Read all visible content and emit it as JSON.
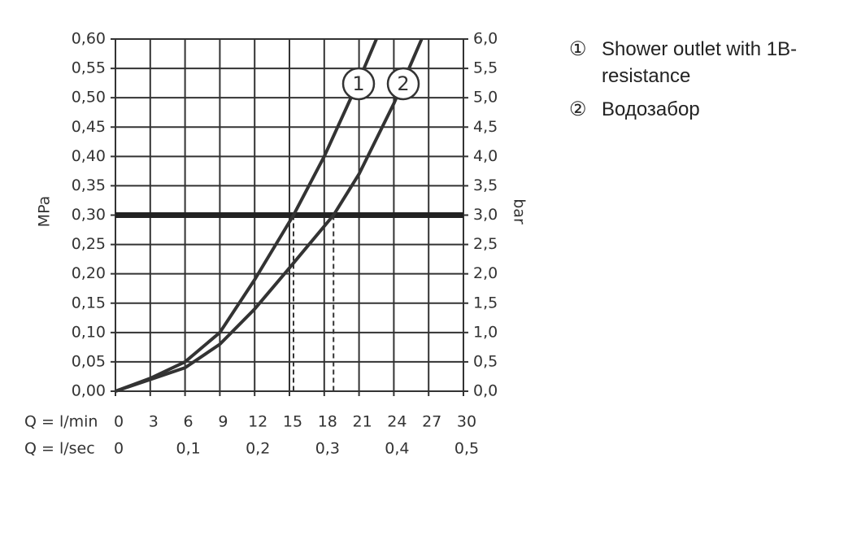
{
  "chart_data": {
    "type": "line",
    "xlabel": "Q = l/min",
    "x2label": "Q = l/sec",
    "ylabel": "MPa",
    "y2label": "bar",
    "xlim": [
      0,
      30
    ],
    "xticks": [
      0,
      3,
      6,
      9,
      12,
      15,
      18,
      21,
      24,
      27,
      30
    ],
    "x2lim": [
      0,
      0.5
    ],
    "x2ticks": [
      0,
      {
        "value": 0.1,
        "label": "0,1"
      },
      {
        "value": 0.2,
        "label": "0,2"
      },
      {
        "value": 0.3,
        "label": "0,3"
      },
      {
        "value": 0.4,
        "label": "0,4"
      },
      {
        "value": 0.5,
        "label": "0,5"
      }
    ],
    "ylim": [
      0,
      0.6
    ],
    "yticks": [
      {
        "value": 0,
        "label": "0,00"
      },
      {
        "value": 0.05,
        "label": "0,05"
      },
      {
        "value": 0.1,
        "label": "0,10"
      },
      {
        "value": 0.15,
        "label": "0,15"
      },
      {
        "value": 0.2,
        "label": "0,20"
      },
      {
        "value": 0.25,
        "label": "0,25"
      },
      {
        "value": 0.3,
        "label": "0,30"
      },
      {
        "value": 0.35,
        "label": "0,35"
      },
      {
        "value": 0.4,
        "label": "0,40"
      },
      {
        "value": 0.45,
        "label": "0,45"
      },
      {
        "value": 0.5,
        "label": "0,50"
      },
      {
        "value": 0.55,
        "label": "0,55"
      },
      {
        "value": 0.6,
        "label": "0,60"
      }
    ],
    "y2lim": [
      0,
      6
    ],
    "y2ticks": [
      {
        "value": 0,
        "label": "0,0"
      },
      {
        "value": 0.5,
        "label": "0,5"
      },
      {
        "value": 1,
        "label": "1,0"
      },
      {
        "value": 1.5,
        "label": "1,5"
      },
      {
        "value": 2,
        "label": "2,0"
      },
      {
        "value": 2.5,
        "label": "2,5"
      },
      {
        "value": 3,
        "label": "3,0"
      },
      {
        "value": 3.5,
        "label": "3,5"
      },
      {
        "value": 4,
        "label": "4,0"
      },
      {
        "value": 4.5,
        "label": "4,5"
      },
      {
        "value": 5,
        "label": "5,0"
      },
      {
        "value": 5.5,
        "label": "5,5"
      },
      {
        "value": 6,
        "label": "6,0"
      }
    ],
    "grid": true,
    "hline": 0.3,
    "vlines": [
      15.35,
      18.8
    ],
    "series": [
      {
        "name": "Shower outlet with 1B-resistance",
        "curve_label": "1",
        "legend_symbol": "①",
        "color": "#333333",
        "x": [
          0,
          3,
          6,
          9,
          12,
          15.35,
          18,
          21,
          22.5
        ],
        "values": [
          0,
          0.022,
          0.05,
          0.1,
          0.19,
          0.3,
          0.4,
          0.53,
          0.6
        ]
      },
      {
        "name": "Водозабор",
        "curve_label": "2",
        "legend_symbol": "②",
        "color": "#333333",
        "x": [
          0,
          3,
          6,
          9,
          12,
          15,
          18.8,
          21,
          24,
          26.4
        ],
        "values": [
          0,
          0.02,
          0.04,
          0.08,
          0.14,
          0.21,
          0.3,
          0.37,
          0.49,
          0.6
        ]
      }
    ]
  }
}
